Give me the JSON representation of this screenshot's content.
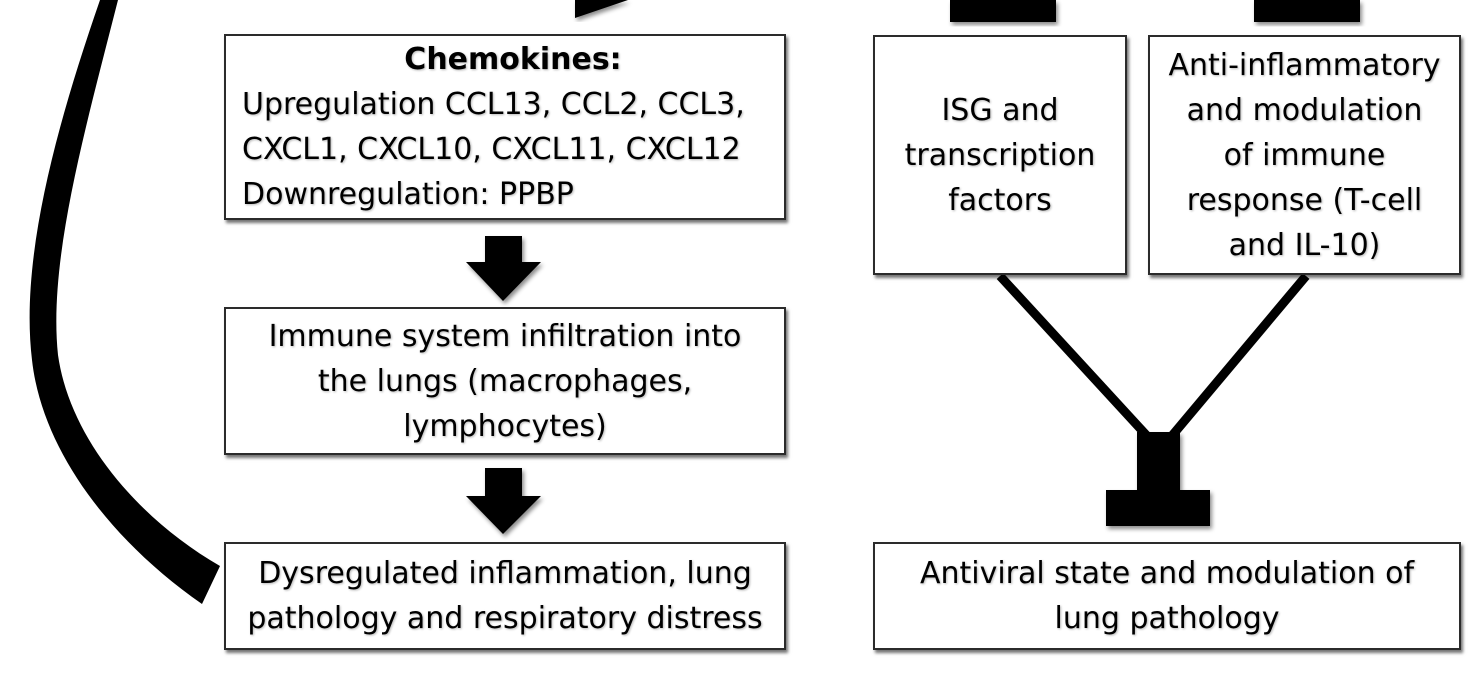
{
  "boxes": {
    "chemokines": {
      "title": "Chemokines:",
      "lines": [
        "Upregulation CCL13, CCL2, CCL3,",
        "CXCL1, CXCL10, CXCL11, CXCL12",
        "Downregulation: PPBP"
      ]
    },
    "infiltration": {
      "lines": [
        "Immune system infiltration into",
        "the lungs (macrophages,",
        "lymphocytes)"
      ]
    },
    "dysregulated": {
      "lines": [
        "Dysregulated inflammation, lung",
        "pathology and respiratory distress"
      ]
    },
    "isg": {
      "lines": [
        "ISG and",
        "transcription",
        "factors"
      ]
    },
    "anti_inflammatory": {
      "lines": [
        "Anti-inflammatory",
        "and modulation",
        "of immune",
        "response (T-cell",
        "and IL-10)"
      ]
    },
    "antiviral": {
      "lines": [
        "Antiviral state and modulation of",
        "lung pathology"
      ]
    }
  },
  "colors": {
    "arrow_fill": "#000000",
    "box_border": "#2b2b2b",
    "box_background": "#ffffff"
  }
}
